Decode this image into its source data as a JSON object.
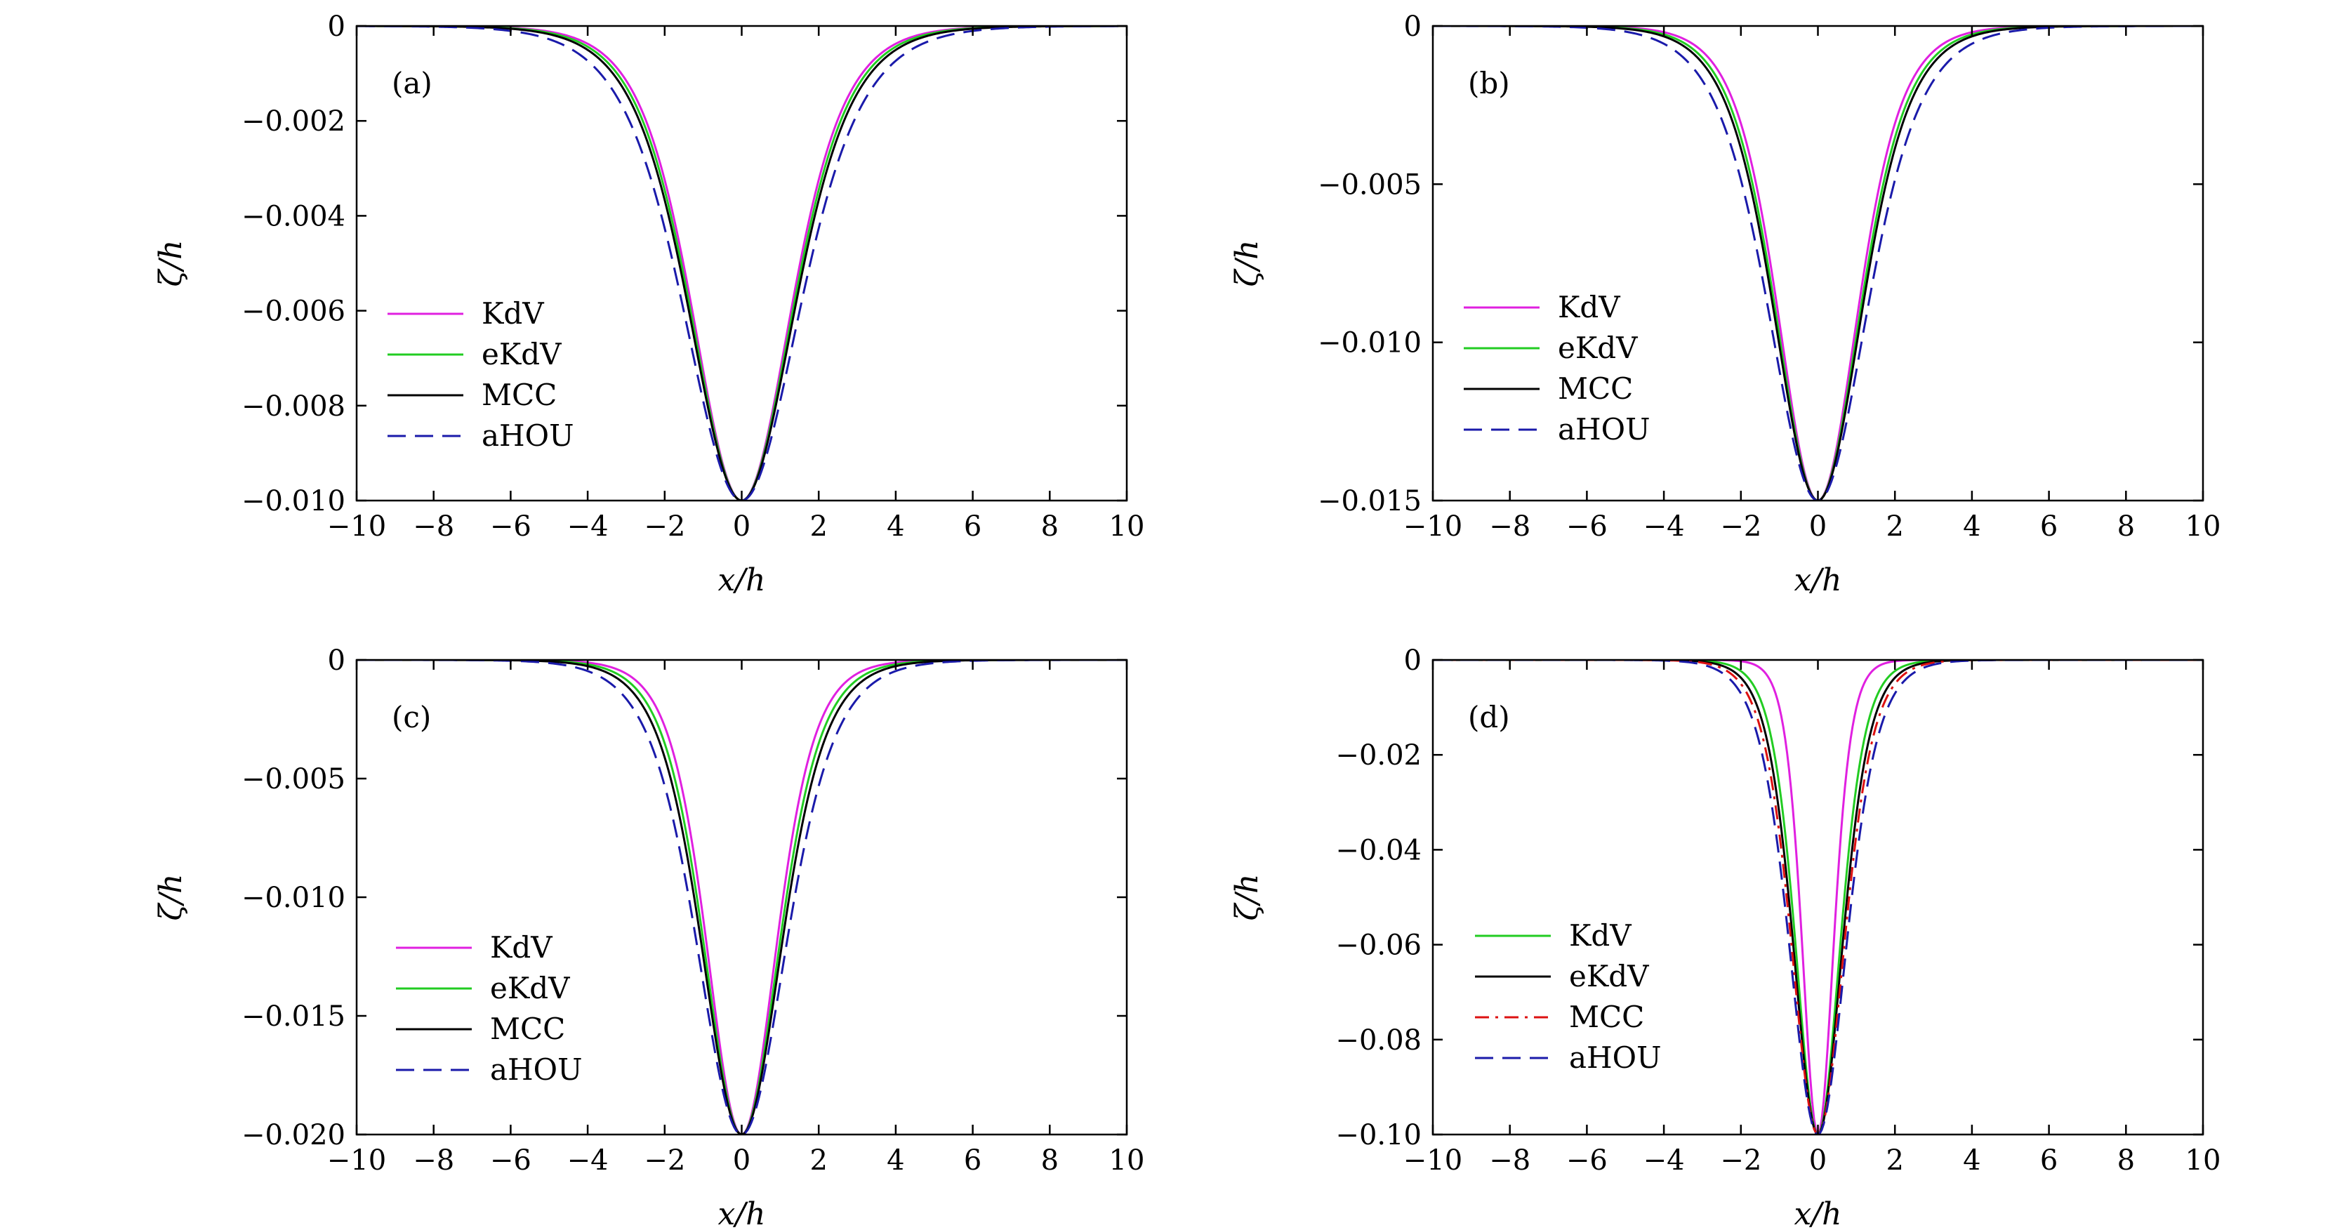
{
  "chart_data": [
    {
      "type": "line",
      "panel": "(a)",
      "xlabel": "x/h",
      "ylabel": "ζ/h",
      "xlim": [
        -10,
        10
      ],
      "ylim": [
        -0.01,
        0
      ],
      "xticks": [
        -10,
        -8,
        -6,
        -4,
        -2,
        0,
        2,
        4,
        6,
        8,
        10
      ],
      "xtick_labels": [
        "−10",
        "−8",
        "−6",
        "−4",
        "−2",
        "0",
        "2",
        "4",
        "6",
        "8",
        "10"
      ],
      "yticks": [
        0,
        -0.002,
        -0.004,
        -0.006,
        -0.008,
        -0.01
      ],
      "ytick_labels": [
        "0",
        "−0.002",
        "−0.004",
        "−0.006",
        "−0.008",
        "−0.010"
      ],
      "legend_position": "left-center",
      "series": [
        {
          "name": "KdV",
          "color": "#e020e0",
          "style": "solid",
          "amplitude": 0.01,
          "half_width": 1.72
        },
        {
          "name": "eKdV",
          "color": "#22cc22",
          "style": "solid",
          "amplitude": 0.01,
          "half_width": 1.78
        },
        {
          "name": "MCC",
          "color": "#000000",
          "style": "solid",
          "amplitude": 0.01,
          "half_width": 1.84
        },
        {
          "name": "aHOU",
          "color": "#1a1aaa",
          "style": "dashed",
          "amplitude": 0.01,
          "half_width": 2.02
        }
      ]
    },
    {
      "type": "line",
      "panel": "(b)",
      "xlabel": "x/h",
      "ylabel": "ζ/h",
      "xlim": [
        -10,
        10
      ],
      "ylim": [
        -0.015,
        0
      ],
      "xticks": [
        -10,
        -8,
        -6,
        -4,
        -2,
        0,
        2,
        4,
        6,
        8,
        10
      ],
      "xtick_labels": [
        "−10",
        "−8",
        "−6",
        "−4",
        "−2",
        "0",
        "2",
        "4",
        "6",
        "8",
        "10"
      ],
      "yticks": [
        0,
        -0.005,
        -0.01,
        -0.015
      ],
      "ytick_labels": [
        "0",
        "−0.005",
        "−0.010",
        "−0.015"
      ],
      "legend_position": "left-center",
      "series": [
        {
          "name": "KdV",
          "color": "#e020e0",
          "style": "solid",
          "amplitude": 0.015,
          "half_width": 1.4
        },
        {
          "name": "eKdV",
          "color": "#22cc22",
          "style": "solid",
          "amplitude": 0.015,
          "half_width": 1.48
        },
        {
          "name": "MCC",
          "color": "#000000",
          "style": "solid",
          "amplitude": 0.015,
          "half_width": 1.54
        },
        {
          "name": "aHOU",
          "color": "#1a1aaa",
          "style": "dashed",
          "amplitude": 0.015,
          "half_width": 1.72
        }
      ]
    },
    {
      "type": "line",
      "panel": "(c)",
      "xlabel": "x/h",
      "ylabel": "ζ/h",
      "xlim": [
        -10,
        10
      ],
      "ylim": [
        -0.02,
        0
      ],
      "xticks": [
        -10,
        -8,
        -6,
        -4,
        -2,
        0,
        2,
        4,
        6,
        8,
        10
      ],
      "xtick_labels": [
        "−10",
        "−8",
        "−6",
        "−4",
        "−2",
        "0",
        "2",
        "4",
        "6",
        "8",
        "10"
      ],
      "yticks": [
        0,
        -0.005,
        -0.01,
        -0.015,
        -0.02
      ],
      "ytick_labels": [
        "0",
        "−0.005",
        "−0.010",
        "−0.015",
        "−0.020"
      ],
      "legend_position": "lower-left",
      "series": [
        {
          "name": "KdV",
          "color": "#e020e0",
          "style": "solid",
          "amplitude": 0.02,
          "half_width": 1.22
        },
        {
          "name": "eKdV",
          "color": "#22cc22",
          "style": "solid",
          "amplitude": 0.02,
          "half_width": 1.32
        },
        {
          "name": "MCC",
          "color": "#000000",
          "style": "solid",
          "amplitude": 0.02,
          "half_width": 1.4
        },
        {
          "name": "aHOU",
          "color": "#1a1aaa",
          "style": "dashed",
          "amplitude": 0.02,
          "half_width": 1.56
        }
      ]
    },
    {
      "type": "line",
      "panel": "(d)",
      "xlabel": "x/h",
      "ylabel": "ζ/h",
      "xlim": [
        -10,
        10
      ],
      "ylim": [
        -0.1,
        0
      ],
      "xticks": [
        -10,
        -8,
        -6,
        -4,
        -2,
        0,
        2,
        4,
        6,
        8,
        10
      ],
      "xtick_labels": [
        "−10",
        "−8",
        "−6",
        "−4",
        "−2",
        "0",
        "2",
        "4",
        "6",
        "8",
        "10"
      ],
      "yticks": [
        0,
        -0.02,
        -0.04,
        -0.06,
        -0.08,
        -0.1
      ],
      "ytick_labels": [
        "0",
        "−0.02",
        "−0.04",
        "−0.06",
        "−0.08",
        "−0.10"
      ],
      "legend_position": "lower-left",
      "series": [
        {
          "name": "",
          "color": "#e020e0",
          "style": "solid",
          "amplitude": 0.1,
          "half_width": 0.55
        },
        {
          "name": "KdV",
          "color": "#22cc22",
          "style": "solid",
          "amplitude": 0.1,
          "half_width": 0.78
        },
        {
          "name": "eKdV",
          "color": "#000000",
          "style": "solid",
          "amplitude": 0.1,
          "half_width": 0.86
        },
        {
          "name": "MCC",
          "color": "#dd1111",
          "style": "dashdot",
          "amplitude": 0.1,
          "half_width": 0.92
        },
        {
          "name": "aHOU",
          "color": "#1a1aaa",
          "style": "dashed",
          "amplitude": 0.1,
          "half_width": 1.0
        }
      ]
    }
  ]
}
